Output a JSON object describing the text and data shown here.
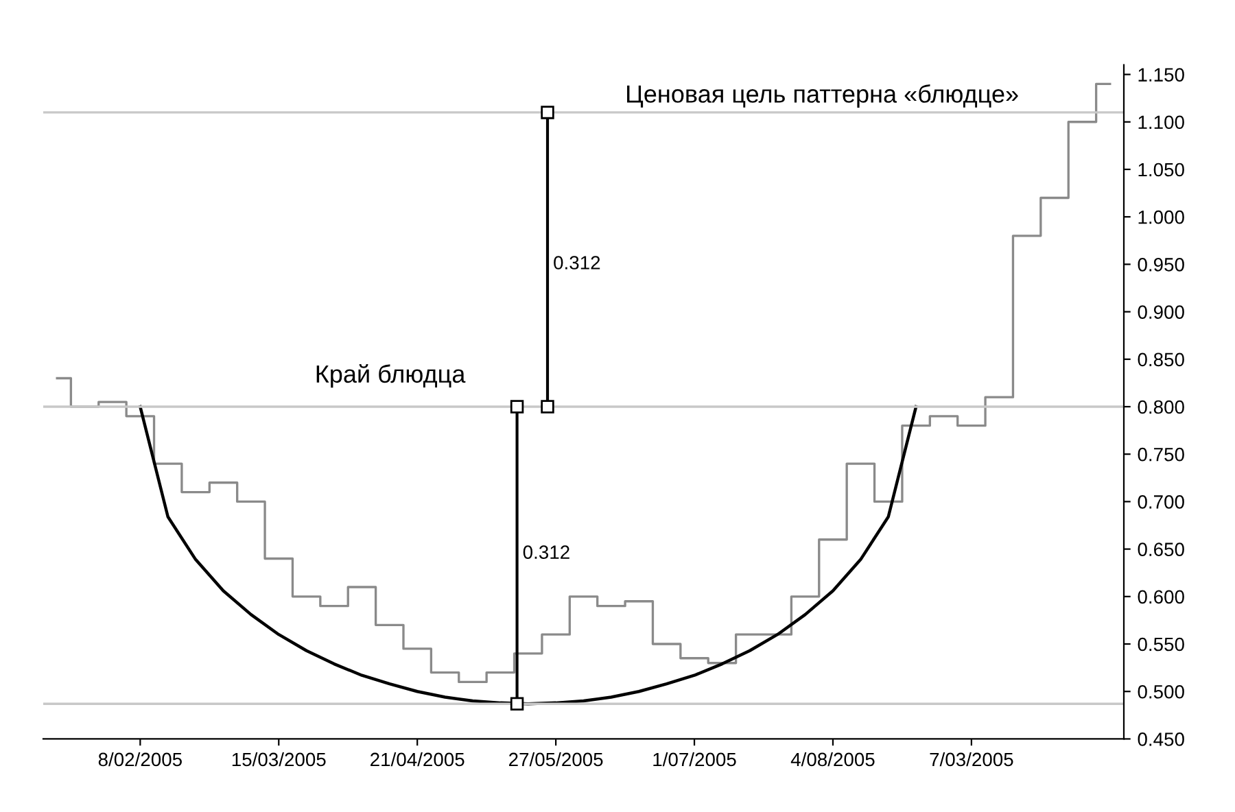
{
  "chart_data": {
    "type": "step",
    "categories": [
      null,
      null,
      null,
      "8/02/2005",
      null,
      null,
      null,
      null,
      "15/03/2005",
      null,
      null,
      null,
      null,
      "21/04/2005",
      null,
      null,
      null,
      null,
      "27/05/2005",
      null,
      null,
      null,
      null,
      "1/07/2005",
      null,
      null,
      null,
      null,
      "4/08/2005",
      null,
      null,
      null,
      null,
      "7/03/2005",
      null,
      null,
      null,
      null,
      null
    ],
    "series": [
      {
        "color": "#8a8a8a",
        "values": [
          0.83,
          0.8,
          0.805,
          0.79,
          0.74,
          0.71,
          0.72,
          0.7,
          0.64,
          0.6,
          0.59,
          0.61,
          0.57,
          0.545,
          0.52,
          0.51,
          0.52,
          0.54,
          0.56,
          0.6,
          0.59,
          0.595,
          0.55,
          0.535,
          0.53,
          0.56,
          0.56,
          0.6,
          0.66,
          0.74,
          0.7,
          0.78,
          0.79,
          0.78,
          0.81,
          0.98,
          1.02,
          1.1,
          1.14
        ]
      },
      {
        "type": "line",
        "color": "#000000",
        "values": [
          null,
          null,
          null,
          0.8,
          0.684,
          0.639,
          0.606,
          0.581,
          0.56,
          0.543,
          0.529,
          0.517,
          0.508,
          0.5,
          0.494,
          0.49,
          0.488,
          0.487,
          0.488,
          0.49,
          0.494,
          0.5,
          0.508,
          0.517,
          0.529,
          0.543,
          0.56,
          0.581,
          0.606,
          0.639,
          0.684,
          0.8,
          null,
          null,
          null,
          null,
          null,
          null,
          null
        ]
      }
    ],
    "ylim": [
      0.45,
      1.16
    ],
    "yticks": [
      {
        "value": 0.45,
        "label": "0.450"
      },
      {
        "value": 0.5,
        "label": "0.500"
      },
      {
        "value": 0.55,
        "label": "0.550"
      },
      {
        "value": 0.6,
        "label": "0.600"
      },
      {
        "value": 0.65,
        "label": "0.650"
      },
      {
        "value": 0.7,
        "label": "0.700"
      },
      {
        "value": 0.75,
        "label": "0.750"
      },
      {
        "value": 0.8,
        "label": "0.800"
      },
      {
        "value": 0.85,
        "label": "0.850"
      },
      {
        "value": 0.9,
        "label": "0.900"
      },
      {
        "value": 0.95,
        "label": "0.950"
      },
      {
        "value": 1.0,
        "label": "1.000"
      },
      {
        "value": 1.05,
        "label": "1.050"
      },
      {
        "value": 1.1,
        "label": "1.100"
      },
      {
        "value": 1.15,
        "label": "1.150"
      }
    ],
    "ref_lines": [
      {
        "axis": "y",
        "value": 1.11,
        "color": "#c8c8c8"
      },
      {
        "axis": "y",
        "value": 0.8,
        "color": "#c8c8c8"
      },
      {
        "axis": "y",
        "value": 0.487,
        "color": "#c8c8c8"
      }
    ],
    "annotations": [
      "Ценовая цель паттерна «блюдце»",
      "Край блюдца",
      "0.312",
      "0.312"
    ],
    "grid": false
  }
}
